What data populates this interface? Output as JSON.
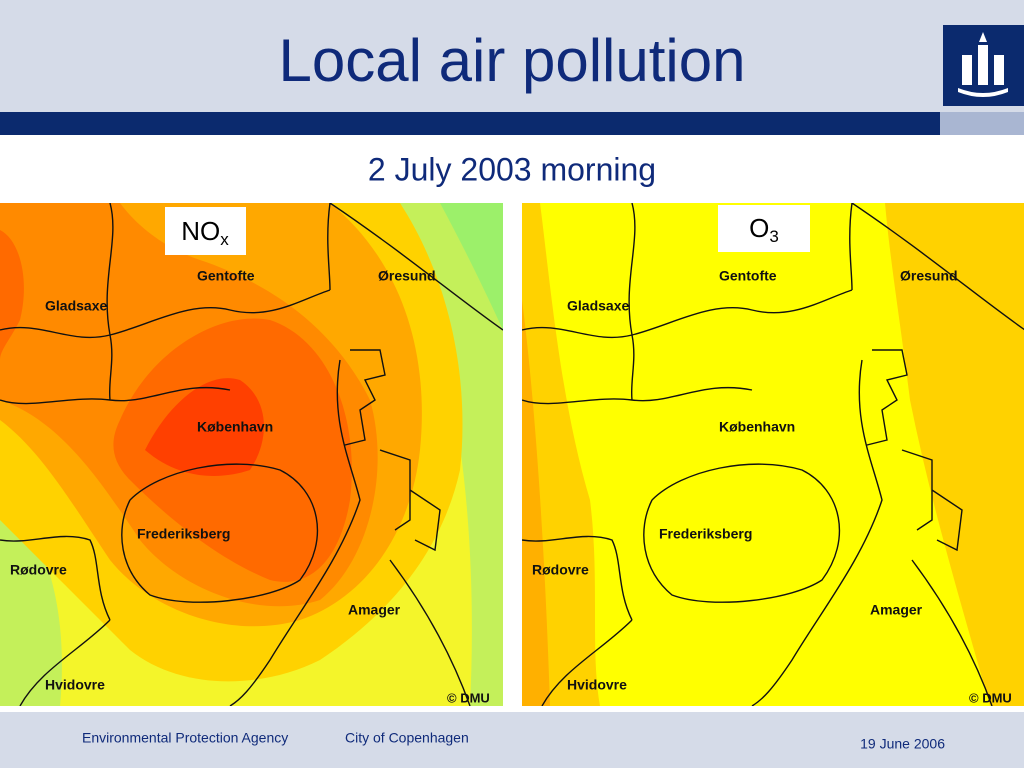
{
  "header": {
    "title": "Local air pollution",
    "subtitle": "2 July 2003 morning"
  },
  "maps": [
    {
      "label": {
        "main": "NO",
        "sub": "x"
      },
      "places": [
        "Gentofte",
        "Øresund",
        "Gladsaxe",
        "København",
        "Frederiksberg",
        "Rødovre",
        "Amager",
        "Hvidovre"
      ],
      "credit": "© DMU"
    },
    {
      "label": {
        "main": "O",
        "sub": "3"
      },
      "places": [
        "Gentofte",
        "Øresund",
        "Gladsaxe",
        "København",
        "Frederiksberg",
        "Rødovre",
        "Amager",
        "Hvidovre"
      ],
      "credit": "© DMU"
    }
  ],
  "footer": {
    "agency": "Environmental Protection Agency",
    "city": "City of Copenhagen",
    "date": "19 June 2006"
  }
}
